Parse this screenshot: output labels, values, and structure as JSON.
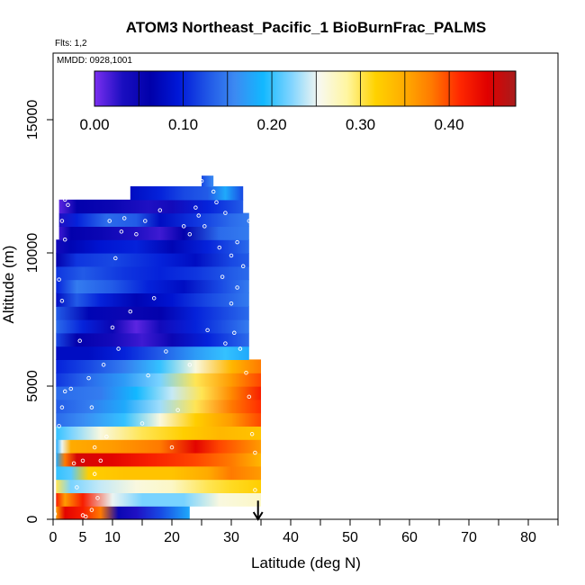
{
  "chart_data": {
    "type": "heatmap",
    "title": "ATOM3 Northeast_Pacific_1 BioBurnFrac_PALMS",
    "notes": [
      "Flts: 1,2",
      "MMDD: 0928,1001"
    ],
    "xlabel": "Latitude (deg N)",
    "ylabel": "Altitude (m)",
    "xlim": [
      0,
      85
    ],
    "ylim": [
      0,
      17500
    ],
    "x_ticks": [
      0,
      5,
      10,
      20,
      30,
      40,
      50,
      60,
      70,
      80
    ],
    "x_minor_ticks": [
      15,
      25,
      35,
      45,
      55,
      65,
      75,
      85
    ],
    "y_ticks": [
      0,
      5000,
      10000,
      15000
    ],
    "colorbar": {
      "min": 0.0,
      "max": 0.475,
      "tick_values": [
        0.0,
        0.1,
        0.2,
        0.3,
        0.4
      ],
      "tick_labels": [
        "0.00",
        "0.10",
        "0.20",
        "0.30",
        "0.40"
      ],
      "colors": [
        "#7b2ff0",
        "#1a0ec0",
        "#0000aa",
        "#0018d8",
        "#1f55e6",
        "#3c8af2",
        "#12b8ff",
        "#7fd4ff",
        "#f8f8f0",
        "#fff6a0",
        "#ffd200",
        "#ffae00",
        "#ff7a00",
        "#ff2800",
        "#e00000",
        "#a81c1c"
      ]
    },
    "arrow_marker": {
      "x": 34.5,
      "y_from": 700,
      "y_to": 0
    },
    "altitude_bins": [
      {
        "y0": 0,
        "y1": 500,
        "x0": 0.5,
        "x1": 23,
        "stops": [
          [
            0.5,
            0.36
          ],
          [
            2,
            0.44
          ],
          [
            5,
            0.42
          ],
          [
            8,
            0.38
          ],
          [
            11,
            0.05
          ],
          [
            14,
            0.03
          ],
          [
            18,
            0.12
          ],
          [
            23,
            0.18
          ]
        ]
      },
      {
        "y0": 500,
        "y1": 1000,
        "x0": 0.5,
        "x1": 35,
        "stops": [
          [
            0.5,
            0.42
          ],
          [
            2,
            0.36
          ],
          [
            5,
            0.42
          ],
          [
            10,
            0.25
          ],
          [
            15,
            0.22
          ],
          [
            22,
            0.22
          ],
          [
            28,
            0.26
          ],
          [
            35,
            0.27
          ]
        ]
      },
      {
        "y0": 1000,
        "y1": 1500,
        "x0": 0.5,
        "x1": 35,
        "stops": [
          [
            0.5,
            0.3
          ],
          [
            3,
            0.22
          ],
          [
            8,
            0.24
          ],
          [
            14,
            0.26
          ],
          [
            20,
            0.27
          ],
          [
            26,
            0.3
          ],
          [
            30,
            0.31
          ],
          [
            35,
            0.32
          ]
        ]
      },
      {
        "y0": 1500,
        "y1": 2000,
        "x0": 0.5,
        "x1": 35,
        "stops": [
          [
            0.5,
            0.2
          ],
          [
            3,
            0.21
          ],
          [
            6,
            0.32
          ],
          [
            12,
            0.33
          ],
          [
            20,
            0.33
          ],
          [
            26,
            0.35
          ],
          [
            30,
            0.38
          ],
          [
            35,
            0.36
          ]
        ]
      },
      {
        "y0": 2000,
        "y1": 2500,
        "x0": 0.5,
        "x1": 35,
        "stops": [
          [
            0.5,
            0.18
          ],
          [
            2,
            0.38
          ],
          [
            4,
            0.45
          ],
          [
            10,
            0.44
          ],
          [
            16,
            0.42
          ],
          [
            24,
            0.4
          ],
          [
            30,
            0.38
          ],
          [
            35,
            0.34
          ]
        ]
      },
      {
        "y0": 2500,
        "y1": 3000,
        "x0": 0.5,
        "x1": 35,
        "stops": [
          [
            0.5,
            0.18
          ],
          [
            1.5,
            0.25
          ],
          [
            3,
            0.35
          ],
          [
            10,
            0.36
          ],
          [
            18,
            0.38
          ],
          [
            24,
            0.44
          ],
          [
            28,
            0.4
          ],
          [
            35,
            0.36
          ]
        ]
      },
      {
        "y0": 3000,
        "y1": 3500,
        "x0": 0.5,
        "x1": 35,
        "stops": [
          [
            0.5,
            0.2
          ],
          [
            3,
            0.22
          ],
          [
            8,
            0.26
          ],
          [
            15,
            0.3
          ],
          [
            22,
            0.32
          ],
          [
            28,
            0.34
          ],
          [
            35,
            0.33
          ]
        ]
      },
      {
        "y0": 3500,
        "y1": 4000,
        "x0": 0.5,
        "x1": 35,
        "stops": [
          [
            0.5,
            0.14
          ],
          [
            5,
            0.16
          ],
          [
            12,
            0.2
          ],
          [
            18,
            0.26
          ],
          [
            24,
            0.32
          ],
          [
            30,
            0.36
          ],
          [
            35,
            0.4
          ]
        ]
      },
      {
        "y0": 4000,
        "y1": 4500,
        "x0": 0.5,
        "x1": 35,
        "stops": [
          [
            0.5,
            0.13
          ],
          [
            6,
            0.15
          ],
          [
            12,
            0.18
          ],
          [
            18,
            0.23
          ],
          [
            24,
            0.3
          ],
          [
            30,
            0.38
          ],
          [
            35,
            0.41
          ]
        ]
      },
      {
        "y0": 4500,
        "y1": 5000,
        "x0": 0.5,
        "x1": 35,
        "stops": [
          [
            0.5,
            0.14
          ],
          [
            8,
            0.15
          ],
          [
            14,
            0.19
          ],
          [
            20,
            0.24
          ],
          [
            25,
            0.3
          ],
          [
            30,
            0.37
          ],
          [
            35,
            0.42
          ]
        ]
      },
      {
        "y0": 5000,
        "y1": 5500,
        "x0": 0.5,
        "x1": 35,
        "stops": [
          [
            0.5,
            0.11
          ],
          [
            6,
            0.14
          ],
          [
            12,
            0.17
          ],
          [
            18,
            0.22
          ],
          [
            24,
            0.3
          ],
          [
            30,
            0.36
          ],
          [
            35,
            0.4
          ]
        ]
      },
      {
        "y0": 5500,
        "y1": 6000,
        "x0": 0.5,
        "x1": 35,
        "stops": [
          [
            0.5,
            0.1
          ],
          [
            6,
            0.12
          ],
          [
            12,
            0.15
          ],
          [
            18,
            0.2
          ],
          [
            24,
            0.26
          ],
          [
            30,
            0.34
          ],
          [
            35,
            0.38
          ]
        ]
      },
      {
        "y0": 6000,
        "y1": 6500,
        "x0": 0.5,
        "x1": 33,
        "stops": [
          [
            0.5,
            0.08
          ],
          [
            6,
            0.08
          ],
          [
            12,
            0.1
          ],
          [
            18,
            0.13
          ],
          [
            24,
            0.17
          ],
          [
            29,
            0.2
          ],
          [
            33,
            0.18
          ]
        ]
      },
      {
        "y0": 6500,
        "y1": 7000,
        "x0": 0.5,
        "x1": 33,
        "stops": [
          [
            0.5,
            0.12
          ],
          [
            4,
            0.06
          ],
          [
            10,
            0.04
          ],
          [
            15,
            0.02
          ],
          [
            20,
            0.05
          ],
          [
            26,
            0.1
          ],
          [
            33,
            0.14
          ]
        ]
      },
      {
        "y0": 7000,
        "y1": 7500,
        "x0": 0.5,
        "x1": 33,
        "stops": [
          [
            0.5,
            0.14
          ],
          [
            5,
            0.1
          ],
          [
            10,
            0.05
          ],
          [
            14,
            0.01
          ],
          [
            18,
            0.04
          ],
          [
            24,
            0.1
          ],
          [
            33,
            0.15
          ]
        ]
      },
      {
        "y0": 7500,
        "y1": 8000,
        "x0": 0.5,
        "x1": 33,
        "stops": [
          [
            0.5,
            0.13
          ],
          [
            6,
            0.07
          ],
          [
            12,
            0.05
          ],
          [
            18,
            0.06
          ],
          [
            24,
            0.1
          ],
          [
            33,
            0.14
          ]
        ]
      },
      {
        "y0": 8000,
        "y1": 8500,
        "x0": 0.5,
        "x1": 33,
        "stops": [
          [
            0.5,
            0.08
          ],
          [
            4,
            0.13
          ],
          [
            8,
            0.1
          ],
          [
            14,
            0.07
          ],
          [
            20,
            0.09
          ],
          [
            26,
            0.12
          ],
          [
            33,
            0.15
          ]
        ]
      },
      {
        "y0": 8500,
        "y1": 9000,
        "x0": 0.5,
        "x1": 33,
        "stops": [
          [
            0.5,
            0.1
          ],
          [
            4,
            0.15
          ],
          [
            10,
            0.13
          ],
          [
            16,
            0.1
          ],
          [
            22,
            0.08
          ],
          [
            28,
            0.12
          ],
          [
            33,
            0.15
          ]
        ]
      },
      {
        "y0": 9000,
        "y1": 9500,
        "x0": 0.5,
        "x1": 33,
        "stops": [
          [
            0.5,
            0.11
          ],
          [
            5,
            0.13
          ],
          [
            12,
            0.11
          ],
          [
            18,
            0.1
          ],
          [
            24,
            0.11
          ],
          [
            30,
            0.13
          ],
          [
            33,
            0.14
          ]
        ]
      },
      {
        "y0": 9500,
        "y1": 10000,
        "x0": 0.5,
        "x1": 33,
        "stops": [
          [
            0.5,
            0.06
          ],
          [
            4,
            0.11
          ],
          [
            10,
            0.12
          ],
          [
            18,
            0.1
          ],
          [
            24,
            0.08
          ],
          [
            30,
            0.12
          ],
          [
            33,
            0.13
          ]
        ]
      },
      {
        "y0": 10000,
        "y1": 10500,
        "x0": 0.5,
        "x1": 33,
        "stops": [
          [
            0.5,
            0.04
          ],
          [
            3,
            0.07
          ],
          [
            8,
            0.09
          ],
          [
            14,
            0.1
          ],
          [
            20,
            0.07
          ],
          [
            26,
            0.1
          ],
          [
            33,
            0.14
          ]
        ]
      },
      {
        "y0": 10500,
        "y1": 11000,
        "x0": 1,
        "x1": 33,
        "stops": [
          [
            1,
            0.02
          ],
          [
            3,
            0.06
          ],
          [
            8,
            0.05
          ],
          [
            14,
            0.03
          ],
          [
            18,
            0.02
          ],
          [
            22,
            0.06
          ],
          [
            28,
            0.14
          ],
          [
            33,
            0.15
          ]
        ]
      },
      {
        "y0": 11000,
        "y1": 11500,
        "x0": 1,
        "x1": 33,
        "stops": [
          [
            1,
            0.03
          ],
          [
            4,
            0.1
          ],
          [
            9,
            0.14
          ],
          [
            14,
            0.13
          ],
          [
            18,
            0.08
          ],
          [
            24,
            0.11
          ],
          [
            30,
            0.14
          ],
          [
            33,
            0.15
          ]
        ]
      },
      {
        "y0": 11500,
        "y1": 12000,
        "x0": 1,
        "x1": 32,
        "stops": [
          [
            1,
            0.01
          ],
          [
            4,
            0.06
          ],
          [
            10,
            0.05
          ],
          [
            16,
            0.03
          ],
          [
            20,
            0.04
          ],
          [
            26,
            0.1
          ],
          [
            32,
            0.13
          ]
        ]
      },
      {
        "y0": 12000,
        "y1": 12500,
        "x0": 13,
        "x1": 32,
        "stops": [
          [
            13,
            0.08
          ],
          [
            18,
            0.1
          ],
          [
            22,
            0.12
          ],
          [
            26,
            0.13
          ],
          [
            29,
            0.18
          ],
          [
            32,
            0.12
          ]
        ]
      },
      {
        "y0": 12500,
        "y1": 12900,
        "x0": 25,
        "x1": 27,
        "stops": [
          [
            25,
            0.12
          ],
          [
            27,
            0.16
          ]
        ]
      }
    ],
    "points": [
      [
        0.3,
        200
      ],
      [
        1,
        3500
      ],
      [
        1.5,
        4200
      ],
      [
        2,
        4800
      ],
      [
        1.5,
        8200
      ],
      [
        1,
        9000
      ],
      [
        2,
        10500
      ],
      [
        1.5,
        11200
      ],
      [
        2,
        12000
      ],
      [
        2.5,
        11800
      ],
      [
        3,
        4900
      ],
      [
        3.5,
        2100
      ],
      [
        4,
        1200
      ],
      [
        4.5,
        6700
      ],
      [
        5,
        2200
      ],
      [
        5,
        150
      ],
      [
        5.5,
        100
      ],
      [
        6,
        5300
      ],
      [
        6.5,
        4200
      ],
      [
        6.5,
        350
      ],
      [
        7,
        2700
      ],
      [
        7,
        1700
      ],
      [
        7.5,
        800
      ],
      [
        8,
        2200
      ],
      [
        8.5,
        5800
      ],
      [
        9,
        3100
      ],
      [
        9.5,
        11200
      ],
      [
        10,
        7200
      ],
      [
        10.5,
        9800
      ],
      [
        11,
        6400
      ],
      [
        11.5,
        10800
      ],
      [
        12,
        11300
      ],
      [
        13,
        7800
      ],
      [
        14,
        10700
      ],
      [
        15,
        3600
      ],
      [
        15.5,
        11200
      ],
      [
        16,
        5400
      ],
      [
        17,
        8300
      ],
      [
        18,
        11600
      ],
      [
        19,
        6300
      ],
      [
        20,
        2700
      ],
      [
        21,
        4100
      ],
      [
        22,
        11000
      ],
      [
        23,
        10700
      ],
      [
        23,
        5800
      ],
      [
        24,
        11700
      ],
      [
        24.5,
        11400
      ],
      [
        25,
        12700
      ],
      [
        25.5,
        11000
      ],
      [
        26,
        7100
      ],
      [
        27,
        12300
      ],
      [
        27.5,
        11900
      ],
      [
        28,
        10200
      ],
      [
        28.5,
        9100
      ],
      [
        29,
        11500
      ],
      [
        30,
        8100
      ],
      [
        30.5,
        7000
      ],
      [
        31,
        10400
      ],
      [
        31.5,
        6400
      ],
      [
        32,
        9500
      ],
      [
        32.5,
        5500
      ],
      [
        33,
        4600
      ],
      [
        33.5,
        3200
      ],
      [
        34,
        2500
      ],
      [
        34,
        1100
      ],
      [
        33,
        11200
      ],
      [
        32.5,
        12000
      ],
      [
        31,
        8700
      ],
      [
        30,
        9900
      ],
      [
        29,
        6600
      ]
    ]
  }
}
